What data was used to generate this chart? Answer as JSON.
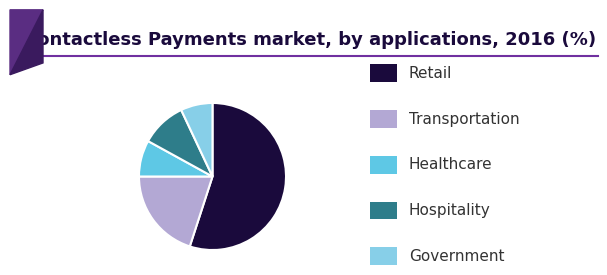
{
  "title": "Contactless Payments market, by applications, 2016 (%)",
  "slices": [
    {
      "label": "Retail",
      "value": 55,
      "color": "#1a0a3c"
    },
    {
      "label": "Transportation",
      "value": 20,
      "color": "#b3a8d4"
    },
    {
      "label": "Healthcare",
      "value": 8,
      "color": "#5ec8e5"
    },
    {
      "label": "Hospitality",
      "value": 10,
      "color": "#2e7d8a"
    },
    {
      "label": "Government",
      "value": 7,
      "color": "#87cfe8"
    }
  ],
  "title_color": "#1a0a3c",
  "title_fontsize": 13,
  "legend_fontsize": 11,
  "background_color": "#ffffff",
  "header_line_color": "#7030a0",
  "header_bg_color": "#f5f5f5",
  "start_angle": 90,
  "wedge_edge_color": "#ffffff",
  "wedge_linewidth": 1.5
}
